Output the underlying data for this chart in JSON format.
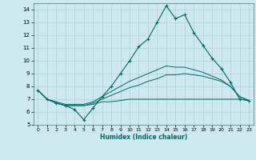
{
  "bg_color": "#cde8ee",
  "grid_color": "#b0d0d8",
  "line_color": "#006868",
  "xlabel": "Humidex (Indice chaleur)",
  "xlim": [
    -0.5,
    23.5
  ],
  "ylim": [
    5,
    14.5
  ],
  "xticks": [
    0,
    1,
    2,
    3,
    4,
    5,
    6,
    7,
    8,
    9,
    10,
    11,
    12,
    13,
    14,
    15,
    16,
    17,
    18,
    19,
    20,
    21,
    22,
    23
  ],
  "yticks": [
    5,
    6,
    7,
    8,
    9,
    10,
    11,
    12,
    13,
    14
  ],
  "series1_x": [
    0,
    1,
    2,
    3,
    4,
    5,
    6,
    7,
    8,
    9,
    10,
    11,
    12,
    13,
    14,
    15,
    16,
    17,
    18,
    19,
    20,
    21,
    22,
    23
  ],
  "series1_y": [
    7.7,
    7.0,
    6.7,
    6.5,
    6.2,
    5.4,
    6.3,
    7.2,
    8.0,
    9.0,
    10.0,
    11.1,
    11.7,
    13.0,
    14.3,
    13.3,
    13.6,
    12.2,
    11.2,
    10.2,
    9.4,
    8.3,
    7.0,
    6.9
  ],
  "series2_x": [
    0,
    1,
    2,
    3,
    4,
    5,
    6,
    7,
    8,
    9,
    10,
    11,
    12,
    13,
    14,
    15,
    16,
    17,
    18,
    19,
    20,
    21,
    22,
    23
  ],
  "series2_y": [
    7.7,
    7.0,
    6.8,
    6.6,
    6.6,
    6.6,
    6.8,
    7.2,
    7.6,
    8.0,
    8.4,
    8.7,
    9.0,
    9.3,
    9.6,
    9.5,
    9.5,
    9.3,
    9.1,
    8.8,
    8.5,
    8.0,
    7.2,
    6.9
  ],
  "series3_x": [
    0,
    1,
    2,
    3,
    4,
    5,
    6,
    7,
    8,
    9,
    10,
    11,
    12,
    13,
    14,
    15,
    16,
    17,
    18,
    19,
    20,
    21,
    22,
    23
  ],
  "series3_y": [
    7.7,
    7.0,
    6.7,
    6.5,
    6.5,
    6.5,
    6.7,
    7.0,
    7.3,
    7.6,
    7.9,
    8.1,
    8.4,
    8.6,
    8.9,
    8.9,
    9.0,
    8.9,
    8.8,
    8.6,
    8.4,
    8.0,
    7.2,
    6.9
  ],
  "series4_x": [
    0,
    1,
    2,
    3,
    4,
    5,
    6,
    7,
    8,
    9,
    10,
    11,
    12,
    13,
    14,
    15,
    16,
    17,
    18,
    19,
    20,
    21,
    22,
    23
  ],
  "series4_y": [
    7.7,
    7.0,
    6.7,
    6.5,
    6.5,
    6.5,
    6.6,
    6.8,
    6.8,
    6.9,
    7.0,
    7.0,
    7.0,
    7.0,
    7.0,
    7.0,
    7.0,
    7.0,
    7.0,
    7.0,
    7.0,
    7.0,
    7.0,
    6.9
  ],
  "figsize": [
    3.2,
    2.0
  ],
  "dpi": 100
}
